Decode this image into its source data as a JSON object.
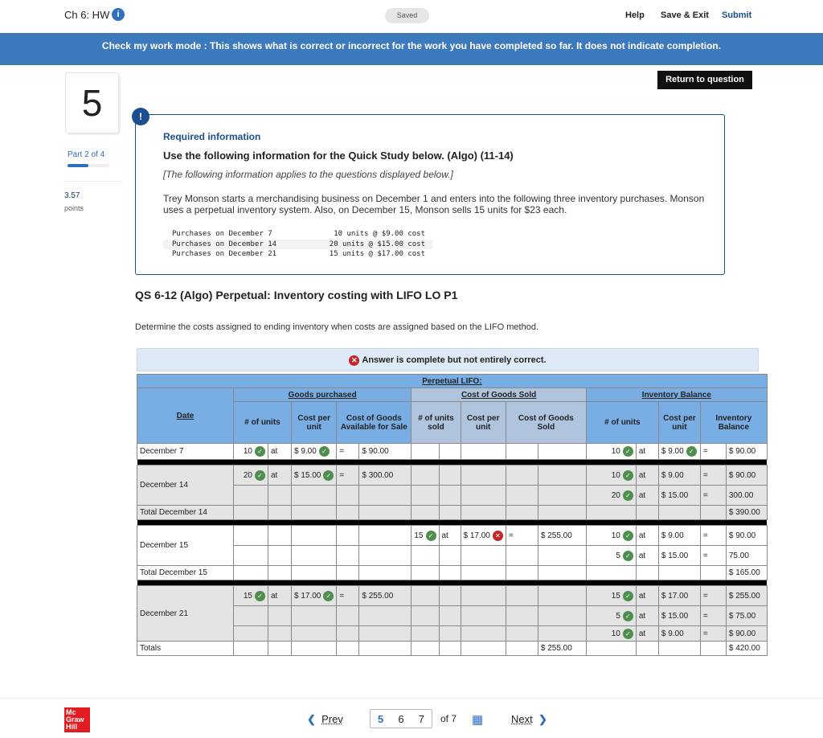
{
  "header": {
    "title": "Ch 6: HW",
    "saved": "Saved",
    "help": "Help",
    "save_exit": "Save & Exit",
    "submit": "Submit"
  },
  "banner": "Check my work mode : This shows what is correct or incorrect for the work you have completed so far. It does not indicate completion.",
  "return_button": "Return to question",
  "sidebar": {
    "question_number": "5",
    "part": "Part 2 of 4",
    "part_progress": 0.5,
    "points": "3.57",
    "points_label": "points"
  },
  "info": {
    "required": "Required information",
    "heading": "Use the following information for the Quick Study below. (Algo) (11-14)",
    "italic": "[The following information applies to the questions displayed below.]",
    "paragraph": "Trey Monson starts a merchandising business on December 1 and enters into the following three inventory purchases. Monson uses a perpetual inventory system. Also, on December 15, Monson sells 15 units for $23 each.",
    "purchases": [
      [
        "Purchases on December 7",
        "10 units @ $9.00 cost"
      ],
      [
        "Purchases on December 14",
        "20 units @ $15.00 cost"
      ],
      [
        "Purchases on December 21",
        "15 units @ $17.00 cost"
      ]
    ]
  },
  "question": {
    "title": "QS 6-12 (Algo) Perpetual: Inventory costing with LIFO LO P1",
    "prompt": "Determine the costs assigned to ending inventory when costs are assigned based on the LIFO method.",
    "status": "Answer is complete but not entirely correct."
  },
  "table": {
    "title": "Perpetual LIFO:",
    "groups": [
      "Goods purchased",
      "Cost of Goods Sold",
      "Inventory Balance"
    ],
    "columns": {
      "date": "Date",
      "units": "# of units",
      "cost_per_unit": "Cost per unit",
      "cgas": "Cost of Goods Available for Sale",
      "units_sold": "# of units sold",
      "cogs_cost": "Cost per unit",
      "cogs": "Cost of Goods Sold",
      "bal_units": "# of units",
      "bal_cost": "Cost per unit",
      "inv_bal": "Inventory Balance"
    },
    "rows": [
      {
        "date": "December 7",
        "span": 1,
        "shade": false,
        "cells": [
          [
            "10",
            "check"
          ],
          [
            "at"
          ],
          [
            "$ 9.00",
            "check"
          ],
          [
            "="
          ],
          [
            "$ 90.00"
          ],
          [
            ""
          ],
          [
            ""
          ],
          [
            ""
          ],
          [
            ""
          ],
          [
            ""
          ],
          [
            "10",
            "check"
          ],
          [
            "at"
          ],
          [
            "$ 9.00",
            "check"
          ],
          [
            "="
          ],
          [
            "$ 90.00"
          ]
        ]
      },
      {
        "sep": true
      },
      {
        "date": "December 14",
        "span": 2,
        "shade": true,
        "cells": [
          [
            "20",
            "check"
          ],
          [
            "at"
          ],
          [
            "$ 15.00",
            "check"
          ],
          [
            "="
          ],
          [
            "$ 300.00"
          ],
          [
            ""
          ],
          [
            ""
          ],
          [
            ""
          ],
          [
            ""
          ],
          [
            ""
          ],
          [
            "10",
            "check"
          ],
          [
            "at"
          ],
          [
            "$ 9.00"
          ],
          [
            "="
          ],
          [
            "$ 90.00"
          ]
        ]
      },
      {
        "shade": true,
        "cells": [
          [
            ""
          ],
          [
            ""
          ],
          [
            ""
          ],
          [
            ""
          ],
          [
            ""
          ],
          [
            ""
          ],
          [
            ""
          ],
          [
            ""
          ],
          [
            ""
          ],
          [
            ""
          ],
          [
            "20",
            "check"
          ],
          [
            "at"
          ],
          [
            "$ 15.00"
          ],
          [
            "="
          ],
          [
            "300.00"
          ]
        ]
      },
      {
        "date": "Total December 14",
        "span": 1,
        "shade": true,
        "cells": [
          [
            ""
          ],
          [
            ""
          ],
          [
            ""
          ],
          [
            ""
          ],
          [
            ""
          ],
          [
            ""
          ],
          [
            ""
          ],
          [
            ""
          ],
          [
            ""
          ],
          [
            ""
          ],
          [
            ""
          ],
          [
            ""
          ],
          [
            ""
          ],
          [
            ""
          ],
          [
            "$ 390.00"
          ]
        ]
      },
      {
        "sep": true
      },
      {
        "date": "December 15",
        "span": 2,
        "shade": false,
        "cells": [
          [
            ""
          ],
          [
            ""
          ],
          [
            ""
          ],
          [
            ""
          ],
          [
            ""
          ],
          [
            "15",
            "check"
          ],
          [
            "at"
          ],
          [
            "$ 17.00",
            "cross"
          ],
          [
            "="
          ],
          [
            "$ 255.00"
          ],
          [
            "10",
            "check"
          ],
          [
            "at"
          ],
          [
            "$ 9.00"
          ],
          [
            "="
          ],
          [
            "$ 90.00"
          ]
        ]
      },
      {
        "shade": false,
        "cells": [
          [
            ""
          ],
          [
            ""
          ],
          [
            ""
          ],
          [
            ""
          ],
          [
            ""
          ],
          [
            ""
          ],
          [
            ""
          ],
          [
            ""
          ],
          [
            ""
          ],
          [
            ""
          ],
          [
            "5",
            "check"
          ],
          [
            "at"
          ],
          [
            "$ 15.00"
          ],
          [
            "="
          ],
          [
            "75.00"
          ]
        ]
      },
      {
        "date": "Total December 15",
        "span": 1,
        "shade": false,
        "cells": [
          [
            ""
          ],
          [
            ""
          ],
          [
            ""
          ],
          [
            ""
          ],
          [
            ""
          ],
          [
            ""
          ],
          [
            ""
          ],
          [
            ""
          ],
          [
            ""
          ],
          [
            ""
          ],
          [
            ""
          ],
          [
            ""
          ],
          [
            ""
          ],
          [
            ""
          ],
          [
            "$ 165.00"
          ]
        ]
      },
      {
        "sep": true
      },
      {
        "date": "December 21",
        "span": 3,
        "shade": true,
        "cells": [
          [
            "15",
            "check"
          ],
          [
            "at"
          ],
          [
            "$ 17.00",
            "check"
          ],
          [
            "="
          ],
          [
            "$ 255.00"
          ],
          [
            ""
          ],
          [
            ""
          ],
          [
            ""
          ],
          [
            ""
          ],
          [
            ""
          ],
          [
            "15",
            "check"
          ],
          [
            "at"
          ],
          [
            "$ 17.00"
          ],
          [
            "="
          ],
          [
            "$ 255.00"
          ]
        ]
      },
      {
        "shade": true,
        "cells": [
          [
            ""
          ],
          [
            ""
          ],
          [
            ""
          ],
          [
            ""
          ],
          [
            ""
          ],
          [
            ""
          ],
          [
            ""
          ],
          [
            ""
          ],
          [
            ""
          ],
          [
            ""
          ],
          [
            "5",
            "check"
          ],
          [
            "at"
          ],
          [
            "$ 15.00"
          ],
          [
            "="
          ],
          [
            "$ 75.00"
          ]
        ]
      },
      {
        "shade": true,
        "cells": [
          [
            ""
          ],
          [
            ""
          ],
          [
            ""
          ],
          [
            ""
          ],
          [
            ""
          ],
          [
            ""
          ],
          [
            ""
          ],
          [
            ""
          ],
          [
            ""
          ],
          [
            ""
          ],
          [
            "10",
            "check"
          ],
          [
            "at"
          ],
          [
            "$ 9.00"
          ],
          [
            "="
          ],
          [
            "$ 90.00"
          ]
        ]
      },
      {
        "date": "Totals",
        "span": 1,
        "shade": false,
        "cells": [
          [
            ""
          ],
          [
            ""
          ],
          [
            ""
          ],
          [
            ""
          ],
          [
            ""
          ],
          [
            ""
          ],
          [
            ""
          ],
          [
            ""
          ],
          [
            ""
          ],
          [
            "$ 255.00",
            "",
            "yellow"
          ],
          [
            ""
          ],
          [
            ""
          ],
          [
            ""
          ],
          [
            ""
          ],
          [
            "$ 420.00",
            "",
            "yellow"
          ]
        ]
      }
    ]
  },
  "footer": {
    "logo": "Mc Graw Hill",
    "prev": "Prev",
    "pages": [
      "5",
      "6",
      "7"
    ],
    "of": "of 7",
    "next": "Next"
  },
  "colors": {
    "accent": "#2f6fc0",
    "banner": "#3d79bd",
    "header_blue": "#79aee4",
    "correct": "#4e8f4e",
    "incorrect": "#c1272d",
    "highlight": "#ffff99"
  }
}
